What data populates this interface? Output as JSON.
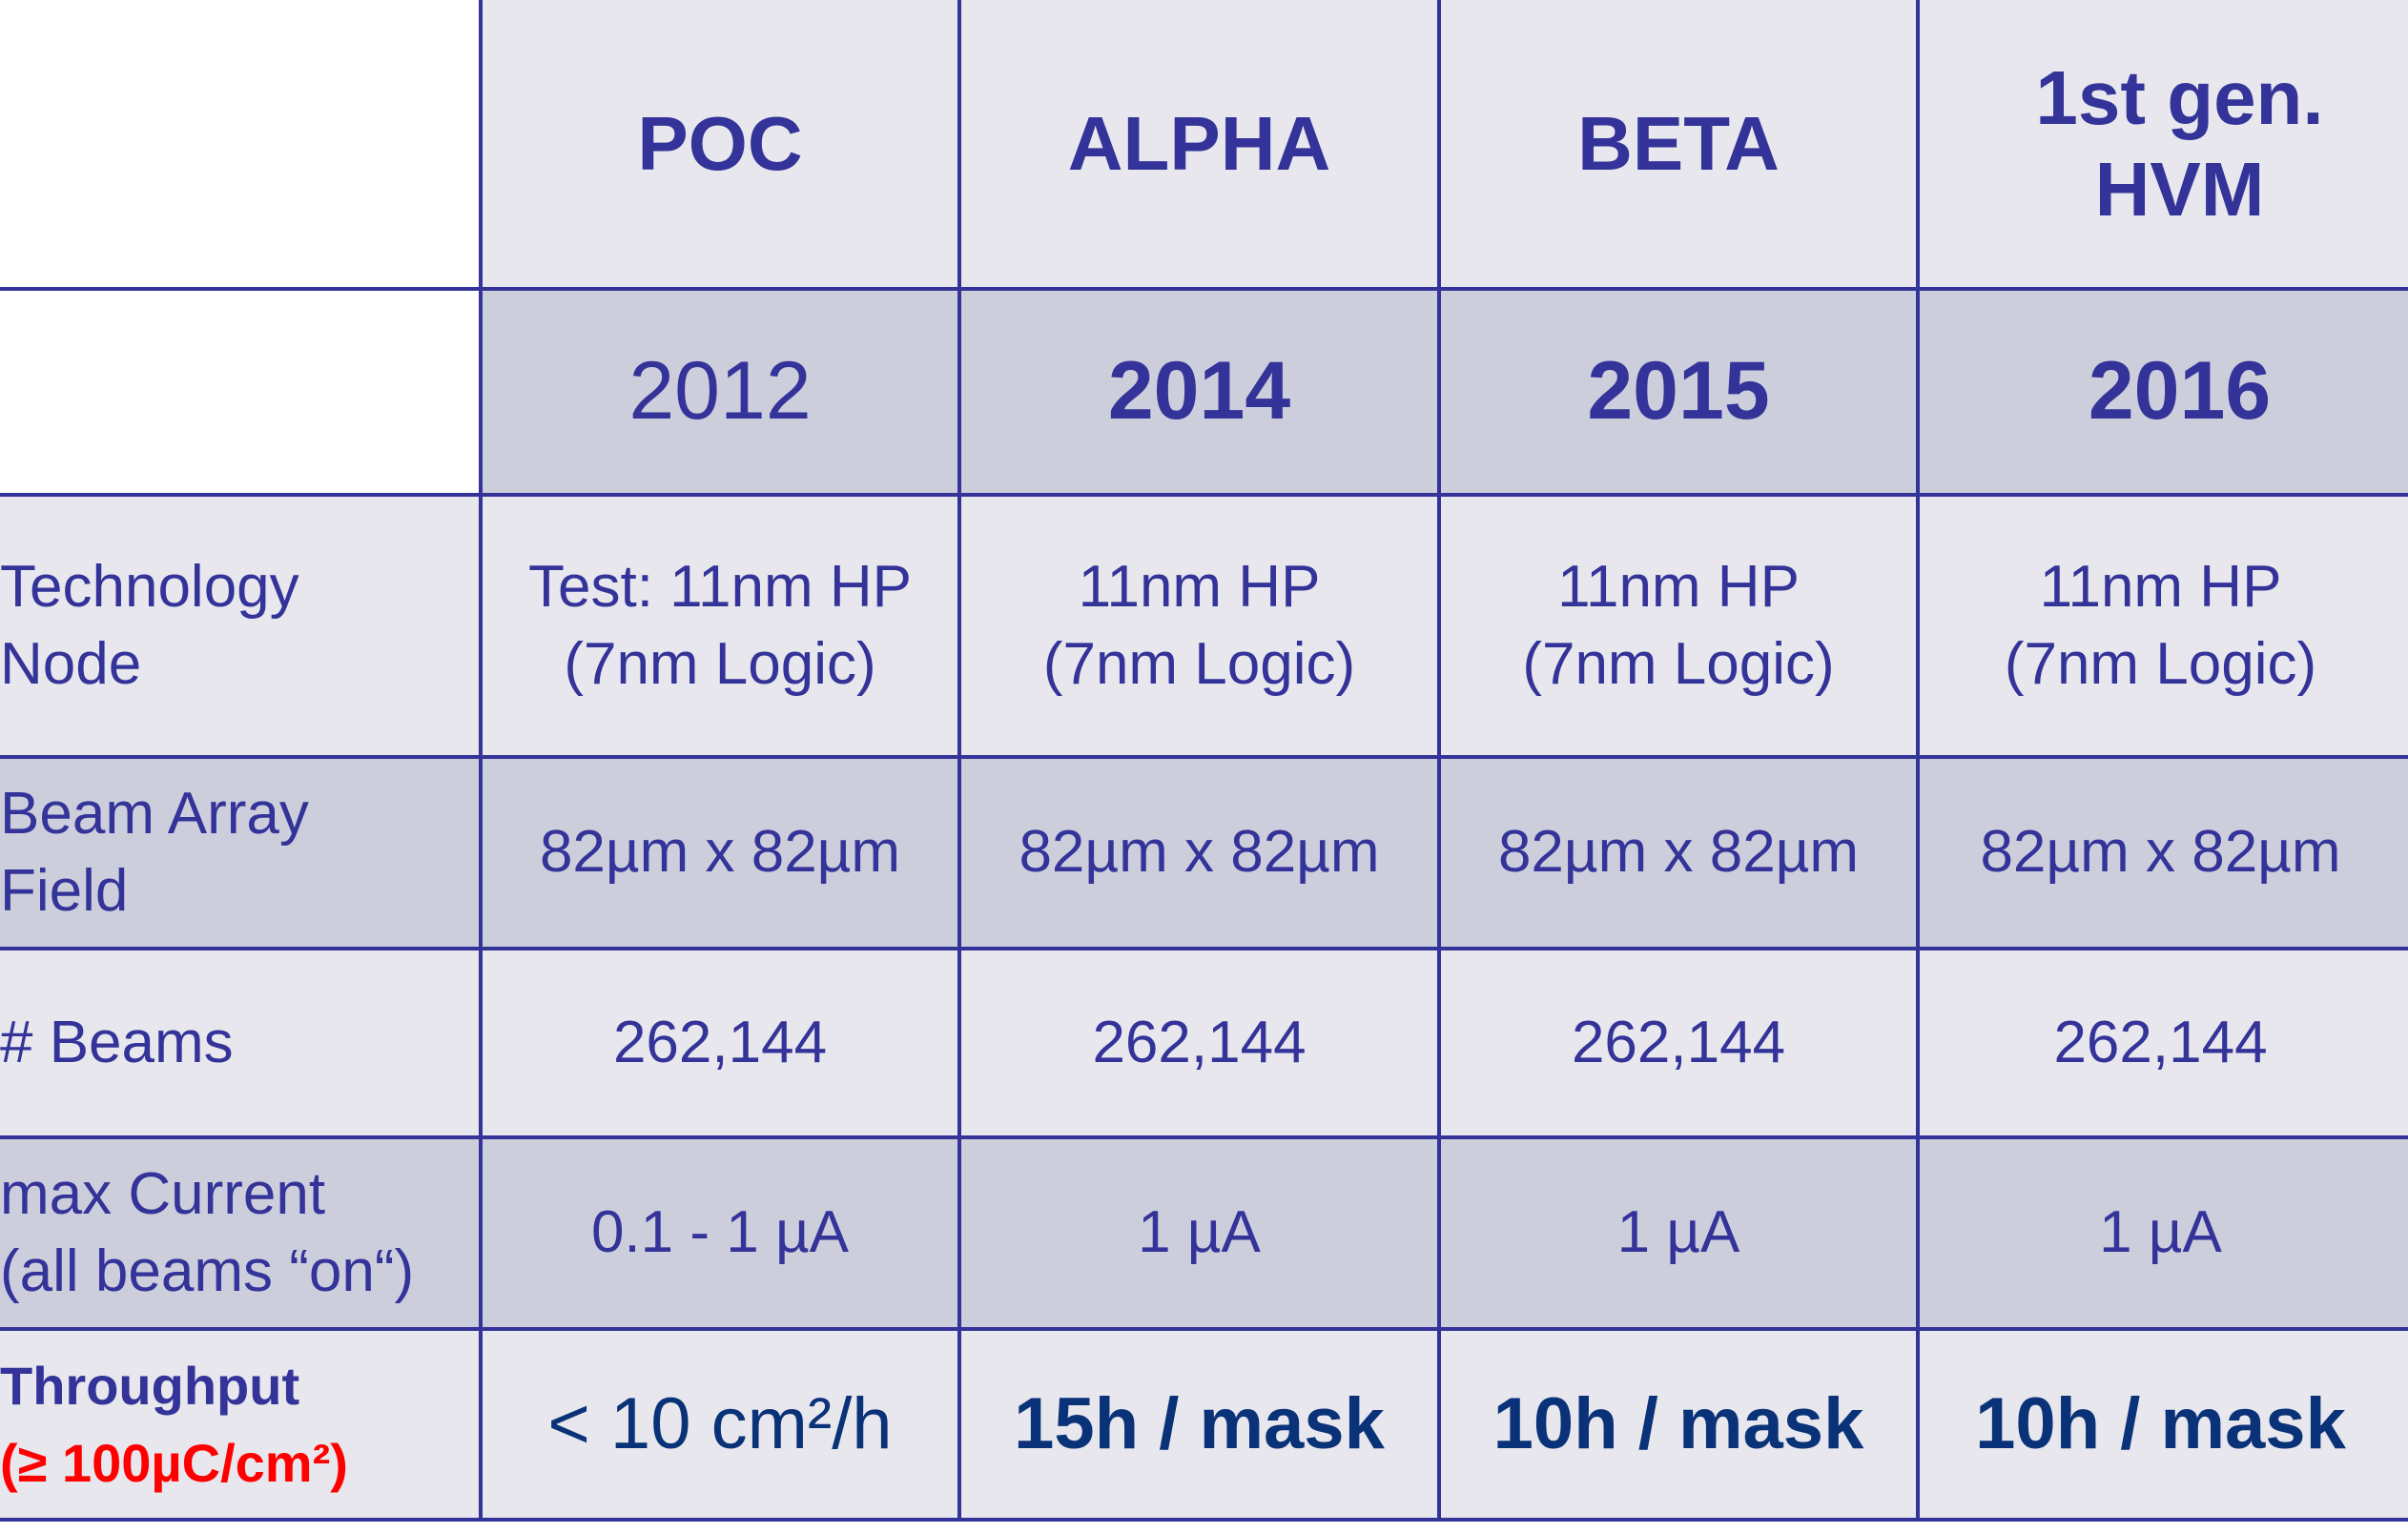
{
  "header": {
    "columns": [
      "POC",
      "ALPHA",
      "BETA",
      "1st gen. HVM"
    ]
  },
  "years": [
    "2012",
    "2014",
    "2015",
    "2016"
  ],
  "rows": [
    {
      "label": [
        "Technology",
        "Node"
      ],
      "values": [
        [
          "Test: 11nm HP",
          "(7nm Logic)"
        ],
        [
          "11nm HP",
          "(7nm Logic)"
        ],
        [
          "11nm HP",
          "(7nm Logic)"
        ],
        [
          "11nm HP",
          "(7nm Logic)"
        ]
      ]
    },
    {
      "label": [
        "Beam Array",
        "Field"
      ],
      "values": [
        "82µm x 82µm",
        "82µm x 82µm",
        "82µm x 82µm",
        "82µm x 82µm"
      ]
    },
    {
      "label": [
        "# Beams"
      ],
      "values": [
        "262,144",
        "262,144",
        "262,144",
        "262,144"
      ]
    },
    {
      "label": [
        "max Current",
        "(all beams “on“)"
      ],
      "values": [
        "0.1 - 1 µA",
        "1 µA",
        "1 µA",
        "1 µA"
      ]
    }
  ],
  "throughput": {
    "label": "Throughput",
    "condition": "(≥ 100µC/cm²)",
    "values": [
      "< 10 cm²/h",
      "15h / mask",
      "10h / mask",
      "10h / mask"
    ]
  },
  "colors": {
    "text": "#333399",
    "border": "#333399",
    "row_light": "#e7e7ed",
    "row_dark": "#cdcedc",
    "throughput_value": "#0a3278",
    "condition": "#ff0000"
  }
}
